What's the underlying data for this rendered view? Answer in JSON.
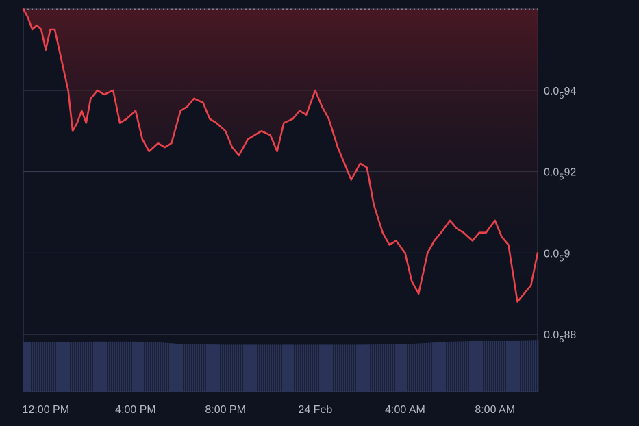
{
  "chart_data": {
    "type": "line",
    "title": "",
    "xlabel": "",
    "ylabel": "",
    "ylim": [
      0.0586,
      0.0598
    ],
    "y_ticks": [
      {
        "value": 0.05894,
        "prefix": "0.0",
        "subscript": "5",
        "suffix": "94"
      },
      {
        "value": 0.05892,
        "prefix": "0.0",
        "subscript": "5",
        "suffix": "92"
      },
      {
        "value": 0.0589,
        "prefix": "0.0",
        "subscript": "5",
        "suffix": "9"
      },
      {
        "value": 0.05888,
        "prefix": "0.0",
        "subscript": "5",
        "suffix": "88"
      }
    ],
    "x_ticks": [
      {
        "t": 12,
        "label": "12:00 PM"
      },
      {
        "t": 16,
        "label": "4:00 PM"
      },
      {
        "t": 20,
        "label": "8:00 PM"
      },
      {
        "t": 24,
        "label": "24 Feb"
      },
      {
        "t": 28,
        "label": "4:00 AM"
      },
      {
        "t": 32,
        "label": "8:00 AM"
      }
    ],
    "baseline": 0.05896,
    "series": [
      {
        "x": [
          11.0,
          11.2,
          11.4,
          11.6,
          11.8,
          12.0,
          12.2,
          12.4,
          12.6,
          12.8,
          13.0,
          13.2,
          13.4,
          13.6,
          13.8,
          14.0,
          14.3,
          14.6,
          15.0,
          15.3,
          15.6,
          16.0,
          16.3,
          16.6,
          17.0,
          17.3,
          17.6,
          18.0,
          18.3,
          18.6,
          19.0,
          19.3,
          19.6,
          20.0,
          20.3,
          20.6,
          21.0,
          21.3,
          21.6,
          22.0,
          22.3,
          22.6,
          23.0,
          23.3,
          23.6,
          24.0,
          24.3,
          24.6,
          25.0,
          25.3,
          25.6,
          26.0,
          26.3,
          26.6,
          27.0,
          27.3,
          27.6,
          28.0,
          28.3,
          28.6,
          29.0,
          29.3,
          29.6,
          30.0,
          30.3,
          30.6,
          31.0,
          31.3,
          31.6,
          32.0,
          32.3,
          32.6,
          33.0,
          33.3,
          33.6,
          33.9
        ],
        "values": [
          0.05896,
          0.058958,
          0.058955,
          0.058956,
          0.058955,
          0.05895,
          0.058955,
          0.058955,
          0.05895,
          0.058945,
          0.05894,
          0.05893,
          0.058932,
          0.058935,
          0.058932,
          0.058938,
          0.05894,
          0.058939,
          0.05894,
          0.058932,
          0.058933,
          0.058935,
          0.058928,
          0.058925,
          0.058927,
          0.058926,
          0.058927,
          0.058935,
          0.058936,
          0.058938,
          0.058937,
          0.058933,
          0.058932,
          0.05893,
          0.058926,
          0.058924,
          0.058928,
          0.058929,
          0.05893,
          0.058929,
          0.058925,
          0.058932,
          0.058933,
          0.058935,
          0.058934,
          0.05894,
          0.058936,
          0.058933,
          0.058926,
          0.058922,
          0.058918,
          0.058922,
          0.058921,
          0.058912,
          0.058905,
          0.058902,
          0.058903,
          0.0589,
          0.058893,
          0.05889,
          0.0589,
          0.058903,
          0.058905,
          0.058908,
          0.058906,
          0.058905,
          0.058903,
          0.058905,
          0.058905,
          0.058908,
          0.058904,
          0.058902,
          0.058888,
          0.05889,
          0.058892,
          0.0589
        ]
      }
    ],
    "volume": {
      "x": [
        11.0,
        13.0,
        14.0,
        16.0,
        17.0,
        18.0,
        20.0,
        23.0,
        26.0,
        28.0,
        29.0,
        30.0,
        31.0,
        32.0,
        33.0,
        33.9
      ],
      "values": [
        0.79,
        0.79,
        0.8,
        0.8,
        0.79,
        0.76,
        0.75,
        0.75,
        0.75,
        0.76,
        0.78,
        0.8,
        0.81,
        0.81,
        0.81,
        0.82
      ]
    },
    "colors": {
      "line": "#e8424a",
      "background": "#0f1320",
      "grid": "#3c4254",
      "volume": "#2b3458",
      "baseline": "#d7dbe4",
      "area_top": "#5a1a24"
    },
    "grid": true,
    "legend": "none"
  }
}
